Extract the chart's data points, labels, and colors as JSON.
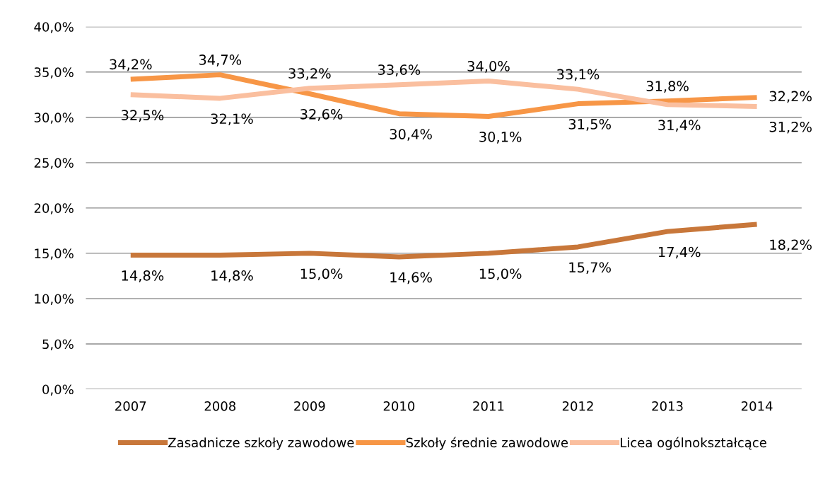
{
  "chart_data": {
    "type": "line",
    "categories": [
      "2007",
      "2008",
      "2009",
      "2010",
      "2011",
      "2012",
      "2013",
      "2014"
    ],
    "series": [
      {
        "name": "Zasadnicze szkoły zawodowe",
        "color": "#c8773a",
        "values": [
          14.8,
          14.8,
          15.0,
          14.6,
          15.0,
          15.7,
          17.4,
          18.2
        ],
        "value_labels": [
          "14,8%",
          "14,8%",
          "15,0%",
          "14,6%",
          "15,0%",
          "15,7%",
          "17,4%",
          "18,2%"
        ]
      },
      {
        "name": "Szkoły średnie zawodowe",
        "color": "#f79646",
        "values": [
          34.2,
          34.7,
          32.6,
          30.4,
          30.1,
          31.5,
          31.8,
          32.2
        ],
        "value_labels": [
          "34,2%",
          "34,7%",
          "32,6%",
          "30,4%",
          "30,1%",
          "31,5%",
          "31,8%",
          "32,2%"
        ]
      },
      {
        "name": "Licea ogólnokształcące",
        "color": "#fabf9f",
        "values": [
          32.5,
          32.1,
          33.2,
          33.6,
          34.0,
          33.1,
          31.4,
          31.2
        ],
        "value_labels": [
          "32,5%",
          "32,1%",
          "33,2%",
          "33,6%",
          "34,0%",
          "33,1%",
          "31,4%",
          "31,2%"
        ]
      }
    ],
    "ylim": [
      0,
      40
    ],
    "yticks": [
      {
        "value": 0,
        "label": "0,0%"
      },
      {
        "value": 5,
        "label": "5,0%"
      },
      {
        "value": 10,
        "label": "10,0%"
      },
      {
        "value": 15,
        "label": "15,0%"
      },
      {
        "value": 20,
        "label": "20,0%"
      },
      {
        "value": 25,
        "label": "25,0%"
      },
      {
        "value": 30,
        "label": "30,0%"
      },
      {
        "value": 35,
        "label": "35,0%"
      },
      {
        "value": 40,
        "label": "40,0%"
      }
    ],
    "grid": "y",
    "legend": "bottom",
    "marker": "none",
    "line_style": "solid"
  }
}
